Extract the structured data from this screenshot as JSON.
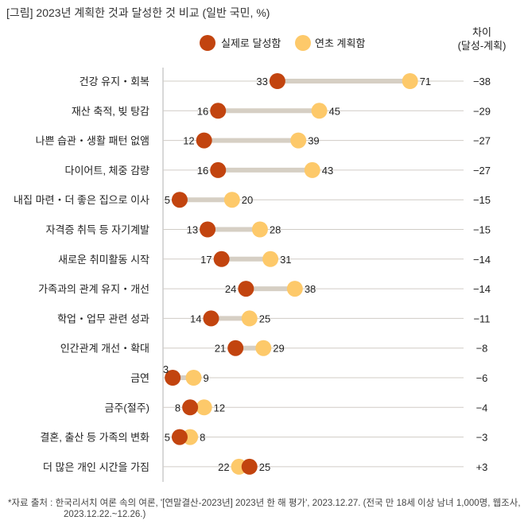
{
  "title": "[그림] 2023년 계획한 것과 달성한 것 비교 (일반 국민, %)",
  "footnote_line1": "*자료 출처 : 한국리서치 여론 속의 여론, '[연말결산-2023년] 2023년 한 해 평가', 2023.12.27. (전국 만 18세 이상 남녀 1,000명, 웹조사,",
  "footnote_line2": "2023.12.22.~12.26.)",
  "chart_data": {
    "type": "dumbbell",
    "title": "2023년 계획한 것과 달성한 것 비교 (일반 국민, %)",
    "legend": [
      {
        "name": "실제로 달성함",
        "color": "#c2440f"
      },
      {
        "name": "연초 계획함",
        "color": "#fdc96a"
      }
    ],
    "legend_position": "top",
    "diff_header": [
      "차이",
      "(달성-계획)"
    ],
    "xlim": [
      0,
      86
    ],
    "categories": [
      "건강 유지・회복",
      "재산 축적, 빚 탕감",
      "나쁜 습관・생활 패턴 없앰",
      "다이어트, 체중 감량",
      "내집 마련・더 좋은 집으로 이사",
      "자격증 취득 등 자기계발",
      "새로운 취미활동 시작",
      "가족과의 관계 유지・개선",
      "학업・업무 관련 성과",
      "인간관계 개선・확대",
      "금연",
      "금주(절주)",
      "결혼, 출산 등 가족의 변화",
      "더 많은 개인 시간을 가짐"
    ],
    "series": [
      {
        "name": "실제로 달성함",
        "values": [
          33,
          16,
          12,
          16,
          5,
          13,
          17,
          24,
          14,
          21,
          3,
          8,
          5,
          25
        ]
      },
      {
        "name": "연초 계획함",
        "values": [
          71,
          45,
          39,
          43,
          20,
          28,
          31,
          38,
          25,
          29,
          9,
          12,
          8,
          22
        ]
      }
    ],
    "diff": [
      "−38",
      "−29",
      "−27",
      "−27",
      "−15",
      "−15",
      "−14",
      "−14",
      "−11",
      "−8",
      "−6",
      "−4",
      "−3",
      "+3"
    ]
  }
}
